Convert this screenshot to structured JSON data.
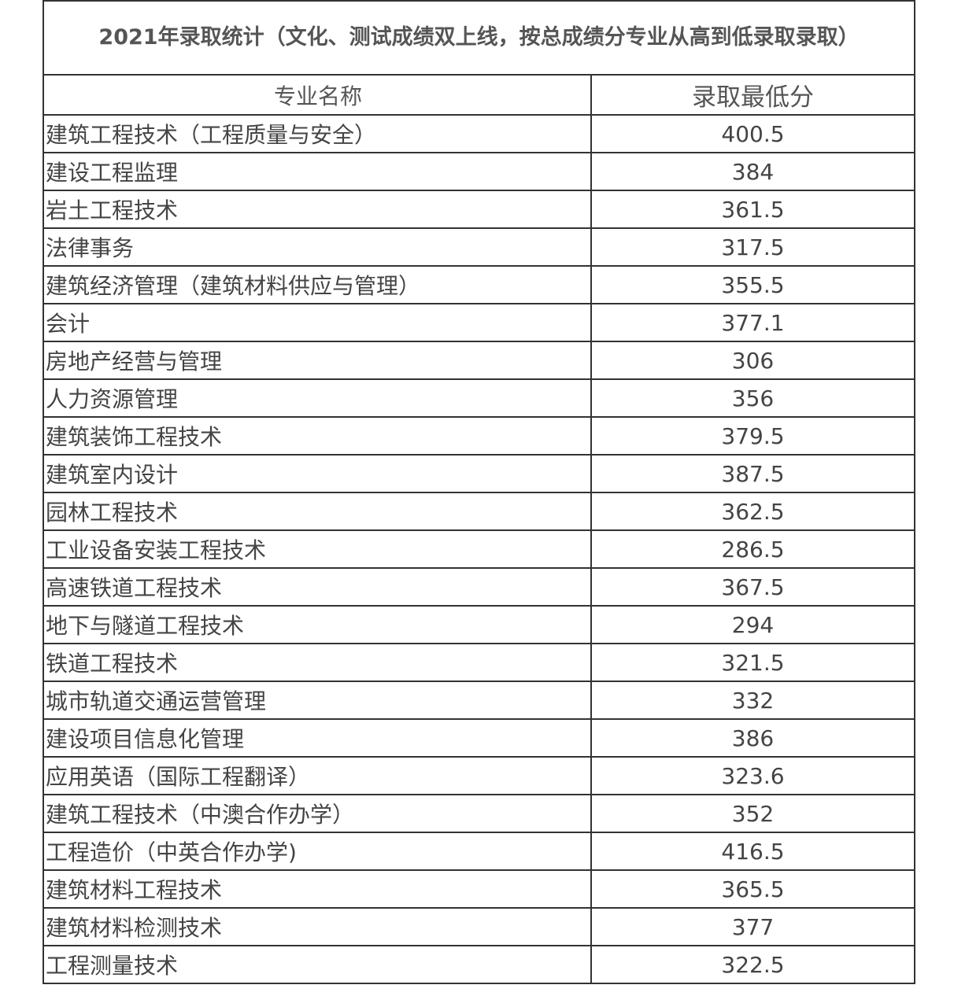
{
  "title": "2021年录取统计（文化、测试成绩双上线，按总成绩分专业从高到低录取录取）",
  "headers": {
    "name": "专业名称",
    "score": "录取最低分"
  },
  "rows": [
    {
      "name": "建筑工程技术（工程质量与安全）",
      "score": "400.5"
    },
    {
      "name": "建设工程监理",
      "score": "384"
    },
    {
      "name": "岩土工程技术",
      "score": "361.5"
    },
    {
      "name": "法律事务",
      "score": "317.5"
    },
    {
      "name": "建筑经济管理（建筑材料供应与管理）",
      "score": "355.5"
    },
    {
      "name": "会计",
      "score": "377.1"
    },
    {
      "name": "房地产经营与管理",
      "score": "306"
    },
    {
      "name": "人力资源管理",
      "score": "356"
    },
    {
      "name": "建筑装饰工程技术",
      "score": "379.5"
    },
    {
      "name": "建筑室内设计",
      "score": "387.5"
    },
    {
      "name": "园林工程技术",
      "score": "362.5"
    },
    {
      "name": "工业设备安装工程技术",
      "score": "286.5"
    },
    {
      "name": "高速铁道工程技术",
      "score": "367.5"
    },
    {
      "name": "地下与隧道工程技术",
      "score": "294"
    },
    {
      "name": "铁道工程技术",
      "score": "321.5"
    },
    {
      "name": "城市轨道交通运营管理",
      "score": "332"
    },
    {
      "name": "建设项目信息化管理",
      "score": "386"
    },
    {
      "name": "应用英语（国际工程翻译）",
      "score": "323.6"
    },
    {
      "name": "建筑工程技术（中澳合作办学）",
      "score": "352"
    },
    {
      "name": "工程造价（中英合作办学)",
      "score": "416.5"
    },
    {
      "name": "建筑材料工程技术",
      "score": "365.5"
    },
    {
      "name": "建筑材料检测技术",
      "score": "377"
    },
    {
      "name": "工程测量技术",
      "score": "322.5"
    }
  ]
}
